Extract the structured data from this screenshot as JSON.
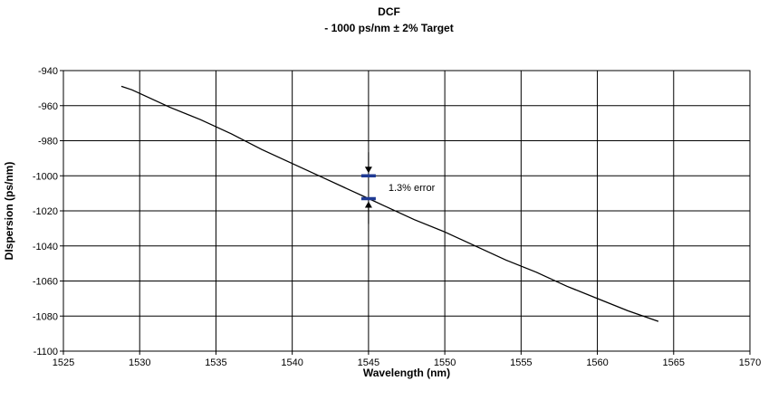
{
  "chart_data": {
    "type": "line",
    "title": "DCF",
    "subtitle": "- 1000 ps/nm ± 2% Target",
    "xlabel": "Wavelength (nm)",
    "ylabel": "DIspersion (ps/nm)",
    "xlim": [
      1525,
      1570
    ],
    "ylim": [
      -1100,
      -940
    ],
    "x_ticks": [
      1525,
      1530,
      1535,
      1540,
      1545,
      1550,
      1555,
      1560,
      1565,
      1570
    ],
    "y_ticks": [
      -940,
      -960,
      -980,
      -1000,
      -1020,
      -1040,
      -1060,
      -1080,
      -1100
    ],
    "grid": true,
    "legend": "none",
    "series": [
      {
        "color": "#000000",
        "x": [
          1528.8,
          1529.5,
          1530,
          1532,
          1534,
          1536,
          1538,
          1540,
          1542,
          1544,
          1545,
          1546,
          1548,
          1550,
          1552,
          1554,
          1556,
          1558,
          1560,
          1562,
          1564
        ],
        "y": [
          -949,
          -951,
          -953,
          -961,
          -968,
          -976,
          -985,
          -993,
          -1001,
          -1009,
          -1013,
          -1017,
          -1025,
          -1032,
          -1040,
          -1048,
          -1055,
          -1063,
          -1070,
          -1077,
          -1083
        ]
      }
    ],
    "annotations": [
      {
        "text": "1.3% error",
        "x": 1545,
        "target_value": -1000,
        "measured_value": -1013,
        "marker_color": "#1f3a93"
      }
    ]
  }
}
